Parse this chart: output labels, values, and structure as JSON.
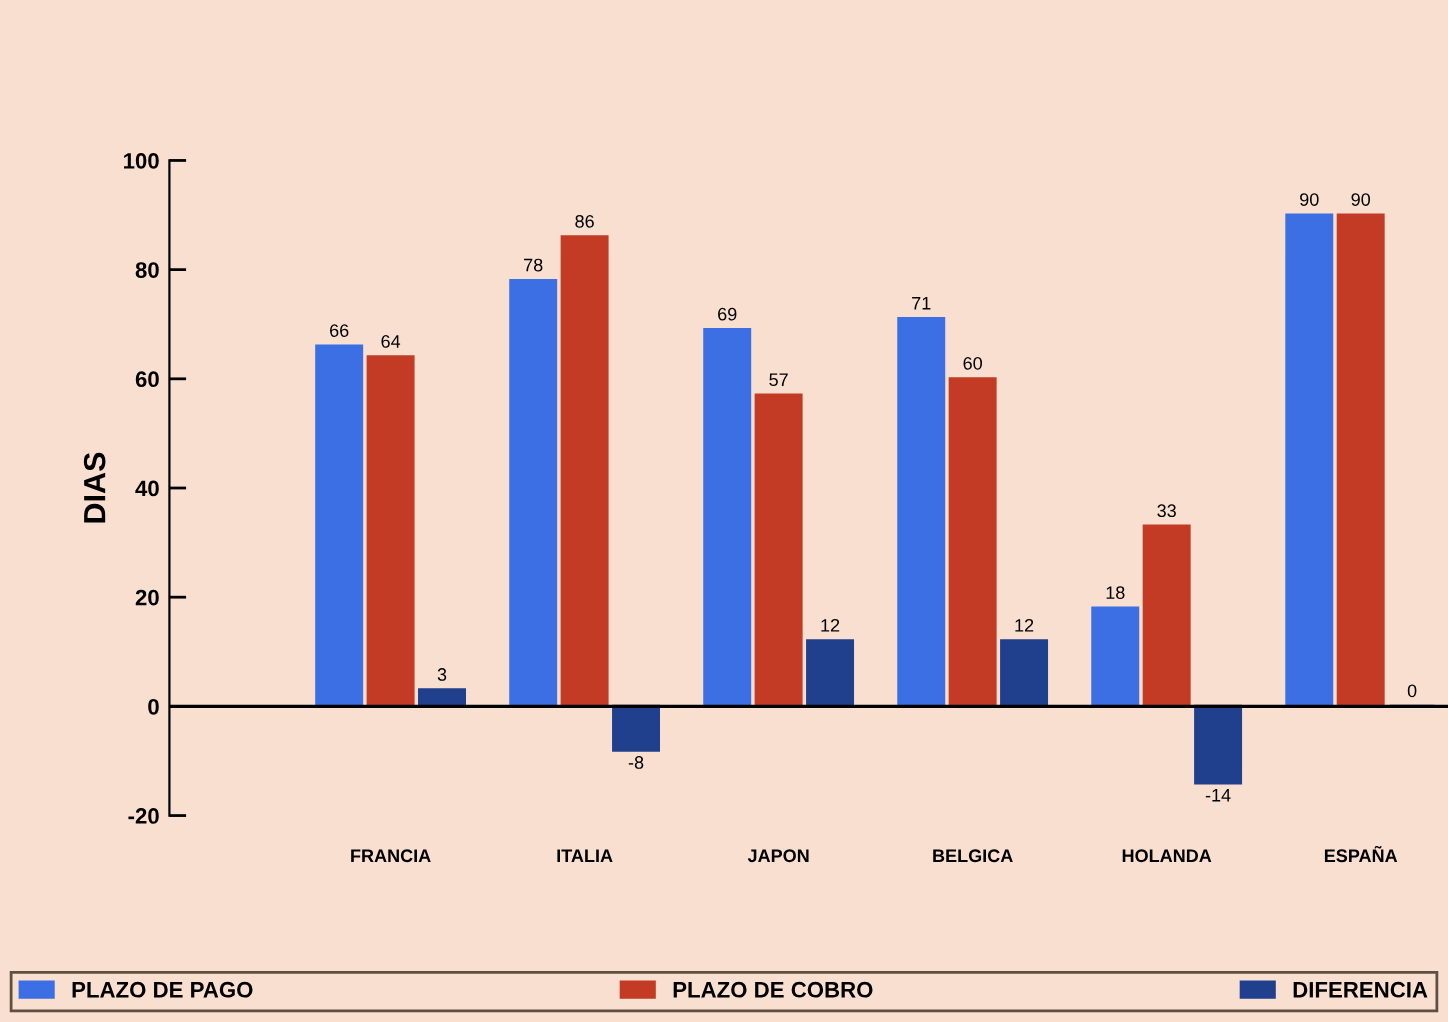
{
  "chart_data": {
    "type": "bar",
    "ylabel": "DIAS",
    "categories": [
      "FRANCIA",
      "ITALIA",
      "JAPON",
      "BELGICA",
      "HOLANDA",
      "ESPAÑA"
    ],
    "series": [
      {
        "name": "PLAZO DE PAGO",
        "color": "#3b6fe3",
        "values": [
          66,
          78,
          69,
          71,
          18,
          90
        ]
      },
      {
        "name": "PLAZO DE COBRO",
        "color": "#c33b25",
        "values": [
          64,
          86,
          57,
          60,
          33,
          90
        ]
      },
      {
        "name": "DIFERENCIA",
        "color": "#203f8c",
        "values": [
          3,
          -8,
          12,
          12,
          -14,
          0
        ]
      }
    ],
    "ylim": [
      -20,
      100
    ],
    "yticks": [
      -20,
      0,
      20,
      40,
      60,
      80,
      100
    ],
    "ref_lines": [
      {
        "axis": "y",
        "value": 0,
        "color": "#000000"
      }
    ],
    "data_labels": true,
    "grid": false,
    "legend": "bottom"
  }
}
